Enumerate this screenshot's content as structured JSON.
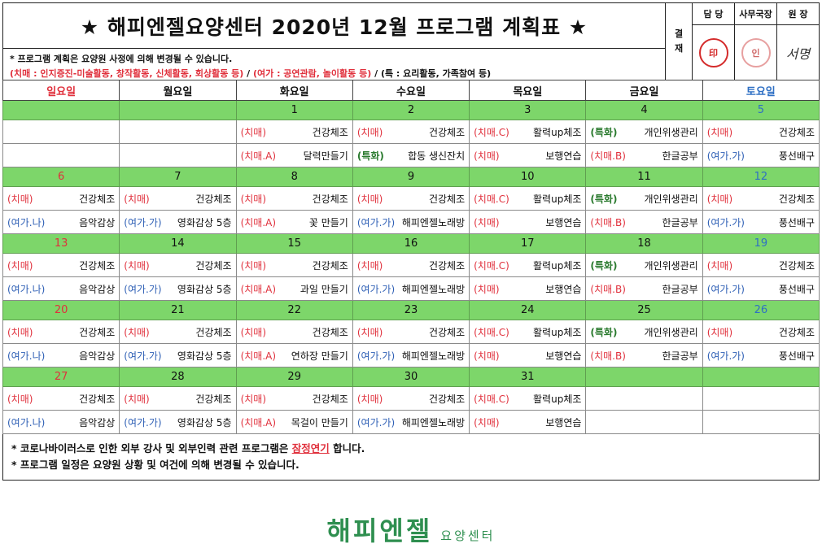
{
  "title": "★ 해피엔젤요양센터 2020년 12월 프로그램 계획표 ★",
  "notes": {
    "line1": "* 프로그램 계획은 요양원 사정에 의해 변경될 수 있습니다.",
    "line2_red": "(치매 : 인지증진-미술활동, 창작활동, 신체활동, 회상활동 등)",
    "sep1": " / ",
    "line2_blue": "(여가 : 공연관람, 놀이활동 등)",
    "sep2": " / ",
    "line2_black": "(특 : 요리활동, 가족참여 등)"
  },
  "approval": {
    "gyeol": "결",
    "jae": "재",
    "headers": [
      "담 당",
      "사무국장",
      "원 장"
    ],
    "stamp1": "印",
    "stamp2": "인",
    "signature": "서명"
  },
  "days": [
    "일요일",
    "월요일",
    "화요일",
    "수요일",
    "목요일",
    "금요일",
    "토요일"
  ],
  "weeks": [
    {
      "dates": [
        "",
        "",
        "1",
        "2",
        "3",
        "4",
        "5"
      ],
      "row1": [
        [
          "",
          ""
        ],
        [
          "",
          ""
        ],
        [
          "(치매)",
          "건강체조"
        ],
        [
          "(치매)",
          "건강체조"
        ],
        [
          "(치매.C)",
          "활력up체조"
        ],
        [
          "(특화)",
          "개인위생관리"
        ],
        [
          "(치매)",
          "건강체조"
        ]
      ],
      "row2": [
        [
          "",
          ""
        ],
        [
          "",
          ""
        ],
        [
          "(치매.A)",
          "달력만들기"
        ],
        [
          "(특화)",
          "합동 생신잔치"
        ],
        [
          "(치매)",
          "보행연습"
        ],
        [
          "(치매.B)",
          "한글공부"
        ],
        [
          "(여가.가)",
          "풍선배구"
        ]
      ]
    },
    {
      "dates": [
        "6",
        "7",
        "8",
        "9",
        "10",
        "11",
        "12"
      ],
      "row1": [
        [
          "(치매)",
          "건강체조"
        ],
        [
          "(치매)",
          "건강체조"
        ],
        [
          "(치매)",
          "건강체조"
        ],
        [
          "(치매)",
          "건강체조"
        ],
        [
          "(치매.C)",
          "활력up체조"
        ],
        [
          "(특화)",
          "개인위생관리"
        ],
        [
          "(치매)",
          "건강체조"
        ]
      ],
      "row2": [
        [
          "(여가.나)",
          "음악감상"
        ],
        [
          "(여가.가)",
          "영화감상 5층"
        ],
        [
          "(치매.A)",
          "꽃 만들기"
        ],
        [
          "(여가.가)",
          "해피엔젤노래방"
        ],
        [
          "(치매)",
          "보행연습"
        ],
        [
          "(치매.B)",
          "한글공부"
        ],
        [
          "(여가.가)",
          "풍선배구"
        ]
      ]
    },
    {
      "dates": [
        "13",
        "14",
        "15",
        "16",
        "17",
        "18",
        "19"
      ],
      "row1": [
        [
          "(치매)",
          "건강체조"
        ],
        [
          "(치매)",
          "건강체조"
        ],
        [
          "(치매)",
          "건강체조"
        ],
        [
          "(치매)",
          "건강체조"
        ],
        [
          "(치매.C)",
          "활력up체조"
        ],
        [
          "(특화)",
          "개인위생관리"
        ],
        [
          "(치매)",
          "건강체조"
        ]
      ],
      "row2": [
        [
          "(여가.나)",
          "음악감상"
        ],
        [
          "(여가.가)",
          "영화감상 5층"
        ],
        [
          "(치매.A)",
          "과일 만들기"
        ],
        [
          "(여가.가)",
          "해피엔젤노래방"
        ],
        [
          "(치매)",
          "보행연습"
        ],
        [
          "(치매.B)",
          "한글공부"
        ],
        [
          "(여가.가)",
          "풍선배구"
        ]
      ]
    },
    {
      "dates": [
        "20",
        "21",
        "22",
        "23",
        "24",
        "25",
        "26"
      ],
      "row1": [
        [
          "(치매)",
          "건강체조"
        ],
        [
          "(치매)",
          "건강체조"
        ],
        [
          "(치매)",
          "건강체조"
        ],
        [
          "(치매)",
          "건강체조"
        ],
        [
          "(치매.C)",
          "활력up체조"
        ],
        [
          "(특화)",
          "개인위생관리"
        ],
        [
          "(치매)",
          "건강체조"
        ]
      ],
      "row2": [
        [
          "(여가.나)",
          "음악감상"
        ],
        [
          "(여가.가)",
          "영화감상 5층"
        ],
        [
          "(치매.A)",
          "연하장 만들기"
        ],
        [
          "(여가.가)",
          "해피엔젤노래방"
        ],
        [
          "(치매)",
          "보행연습"
        ],
        [
          "(치매.B)",
          "한글공부"
        ],
        [
          "(여가.가)",
          "풍선배구"
        ]
      ]
    },
    {
      "dates": [
        "27",
        "28",
        "29",
        "30",
        "31",
        "",
        ""
      ],
      "row1": [
        [
          "(치매)",
          "건강체조"
        ],
        [
          "(치매)",
          "건강체조"
        ],
        [
          "(치매)",
          "건강체조"
        ],
        [
          "(치매)",
          "건강체조"
        ],
        [
          "(치매.C)",
          "활력up체조"
        ],
        [
          "",
          ""
        ],
        [
          "",
          ""
        ]
      ],
      "row2": [
        [
          "(여가.나)",
          "음악감상"
        ],
        [
          "(여가.가)",
          "영화감상 5층"
        ],
        [
          "(치매.A)",
          "목걸이 만들기"
        ],
        [
          "(여가.가)",
          "해피엔젤노래방"
        ],
        [
          "(치매)",
          "보행연습"
        ],
        [
          "",
          ""
        ],
        [
          "",
          ""
        ]
      ]
    }
  ],
  "footer": {
    "line1_a": "* 코로나바이러스로 인한 외부 강사 및 외부인력 관련 프로그램은 ",
    "line1_u": "잠정연기",
    "line1_b": " 합니다.",
    "line2": "* 프로그램 일정은 요양원 상황 및 여건에 의해 변경될 수 있습니다."
  },
  "logo": {
    "main": "해피엔젤",
    "sub": "요양센터"
  }
}
